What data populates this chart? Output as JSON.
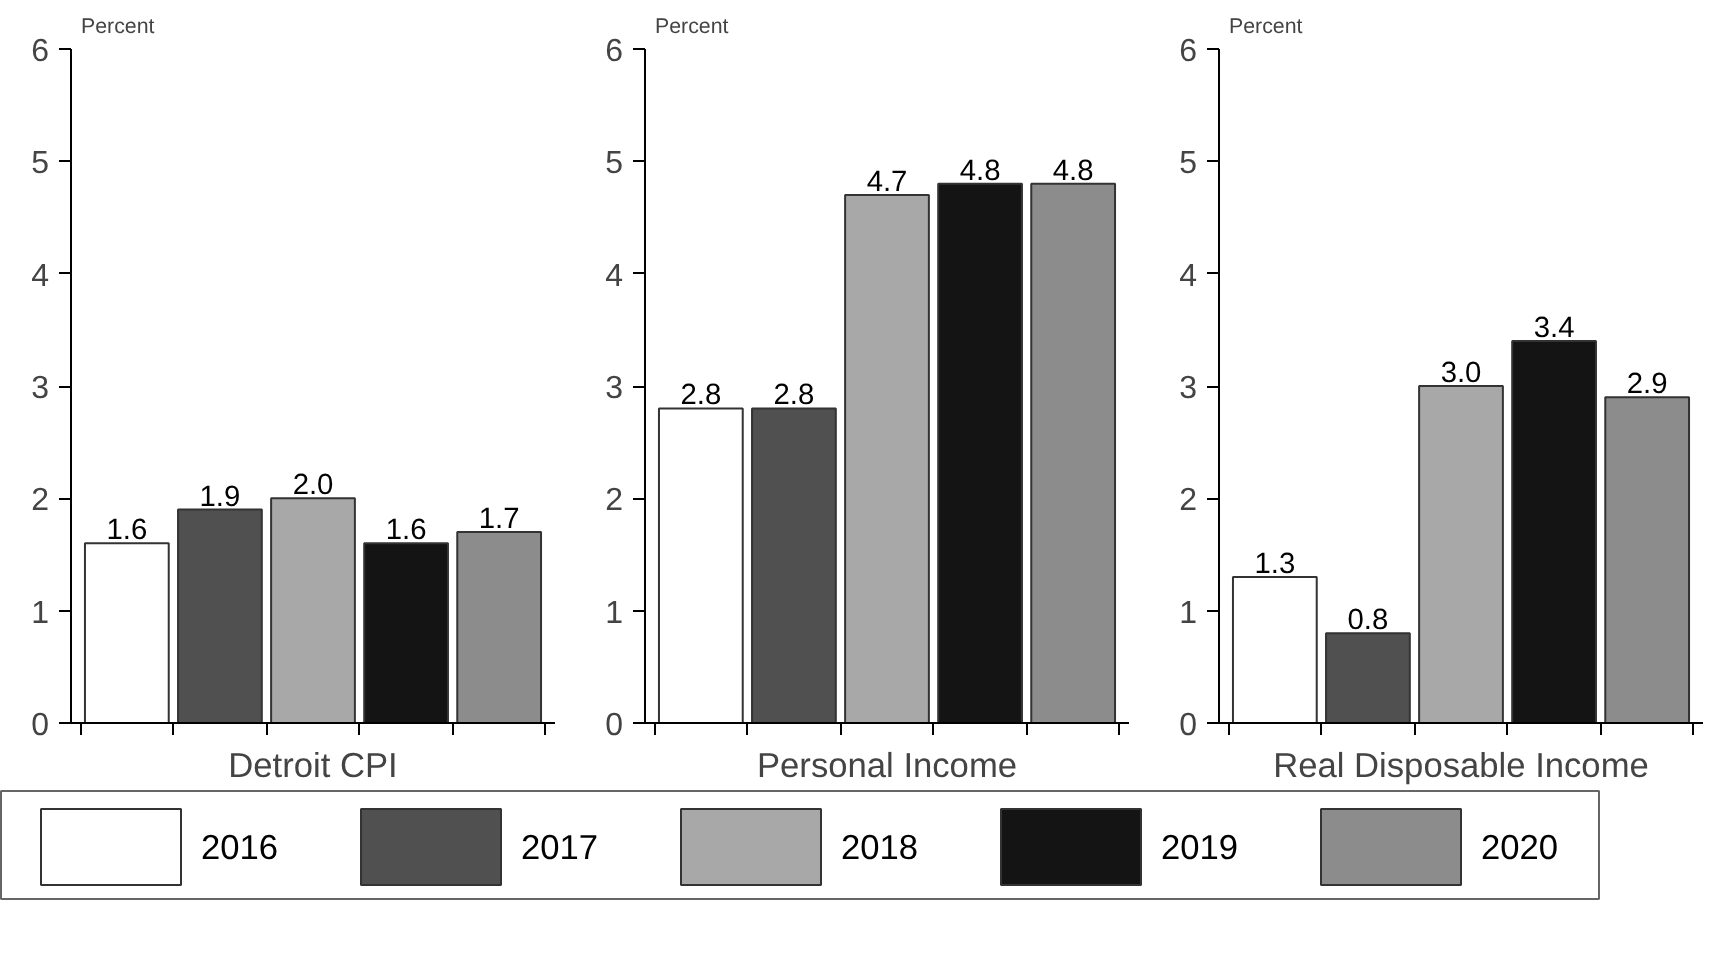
{
  "chart_data": [
    {
      "type": "bar",
      "ylabel": "Percent",
      "xlabel": "Detroit CPI",
      "categories": [
        null
      ],
      "ylim": [
        0,
        6
      ],
      "yticks": [
        0,
        1,
        2,
        3,
        4,
        5,
        6
      ],
      "data_labels": true,
      "legend": "bottom",
      "series": [
        {
          "name": "2016",
          "color": "#ffffff",
          "values": [
            1.6
          ]
        },
        {
          "name": "2017",
          "color": "#505050",
          "values": [
            1.9
          ]
        },
        {
          "name": "2018",
          "color": "#a8a8a8",
          "values": [
            2.0
          ],
          "value_labels": [
            "2.0"
          ]
        },
        {
          "name": "2019",
          "color": "#141414",
          "values": [
            1.6
          ]
        },
        {
          "name": "2020",
          "color": "#8c8c8c",
          "values": [
            1.7
          ]
        }
      ]
    },
    {
      "type": "bar",
      "ylabel": "Percent",
      "xlabel": "Personal Income",
      "categories": [
        null
      ],
      "ylim": [
        0,
        6
      ],
      "yticks": [
        0,
        1,
        2,
        3,
        4,
        5,
        6
      ],
      "data_labels": true,
      "series": [
        {
          "color": "#ffffff",
          "values": [
            2.8
          ]
        },
        {
          "color": "#505050",
          "values": [
            2.8
          ]
        },
        {
          "color": "#a8a8a8",
          "values": [
            4.7
          ]
        },
        {
          "color": "#141414",
          "values": [
            4.8
          ]
        },
        {
          "color": "#8c8c8c",
          "values": [
            4.8
          ]
        }
      ]
    },
    {
      "type": "bar",
      "ylabel": "Percent",
      "xlabel": "Real Disposable Income",
      "categories": [
        null
      ],
      "ylim": [
        0,
        6
      ],
      "yticks": [
        0,
        1,
        2,
        3,
        4,
        5,
        6
      ],
      "data_labels": true,
      "series": [
        {
          "color": "#ffffff",
          "values": [
            1.3
          ]
        },
        {
          "color": "#505050",
          "values": [
            0.8
          ]
        },
        {
          "color": "#a8a8a8",
          "values": [
            3.0
          ],
          "value_labels": [
            "3.0"
          ]
        },
        {
          "color": "#141414",
          "values": [
            3.4
          ]
        },
        {
          "color": "#8c8c8c",
          "values": [
            2.9
          ]
        }
      ]
    }
  ]
}
